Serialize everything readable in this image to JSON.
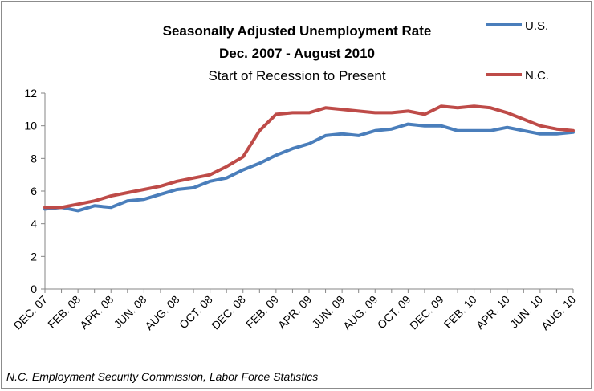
{
  "chart_data": {
    "type": "line",
    "title_lines": [
      "Seasonally Adjusted Unemployment Rate",
      "Dec. 2007  - August 2010"
    ],
    "subtitle": "Start of Recession to Present",
    "source": "N.C. Employment Security Commission, Labor Force Statistics",
    "ylim": [
      0,
      12
    ],
    "yticks": [
      "0",
      "2",
      "4",
      "6",
      "8",
      "10",
      "12"
    ],
    "grid": false,
    "legend_position": "top-right",
    "x_labels": [
      "DEC. 07",
      "FEB. 08",
      "APR. 08",
      "JUN. 08",
      "AUG. 08",
      "OCT. 08",
      "DEC. 08",
      "FEB. 09",
      "APR. 09",
      "JUN. 09",
      "AUG. 09",
      "OCT. 09",
      "DEC. 09",
      "FEB. 10",
      "APR. 10",
      "JUN. 10",
      "AUG. 10"
    ],
    "x": [
      "Dec 07",
      "Jan 08",
      "Feb 08",
      "Mar 08",
      "Apr 08",
      "May 08",
      "Jun 08",
      "Jul 08",
      "Aug 08",
      "Sep 08",
      "Oct 08",
      "Nov 08",
      "Dec 08",
      "Jan 09",
      "Feb 09",
      "Mar 09",
      "Apr 09",
      "May 09",
      "Jun 09",
      "Jul 09",
      "Aug 09",
      "Sep 09",
      "Oct 09",
      "Nov 09",
      "Dec 09",
      "Jan 10",
      "Feb 10",
      "Mar 10",
      "Apr 10",
      "May 10",
      "Jun 10",
      "Jul 10",
      "Aug 10"
    ],
    "series": [
      {
        "name": "U.S.",
        "color": "#4a7ebb",
        "values": [
          4.9,
          5.0,
          4.8,
          5.1,
          5.0,
          5.4,
          5.5,
          5.8,
          6.1,
          6.2,
          6.6,
          6.8,
          7.3,
          7.7,
          8.2,
          8.6,
          8.9,
          9.4,
          9.5,
          9.4,
          9.7,
          9.8,
          10.1,
          10.0,
          10.0,
          9.7,
          9.7,
          9.7,
          9.9,
          9.7,
          9.5,
          9.5,
          9.6
        ]
      },
      {
        "name": "N.C.",
        "color": "#be4b48",
        "values": [
          5.0,
          5.0,
          5.2,
          5.4,
          5.7,
          5.9,
          6.1,
          6.3,
          6.6,
          6.8,
          7.0,
          7.5,
          8.1,
          9.7,
          10.7,
          10.8,
          10.8,
          11.1,
          11.0,
          10.9,
          10.8,
          10.8,
          10.9,
          10.7,
          11.2,
          11.1,
          11.2,
          11.1,
          10.8,
          10.4,
          10.0,
          9.8,
          9.7
        ]
      }
    ]
  }
}
